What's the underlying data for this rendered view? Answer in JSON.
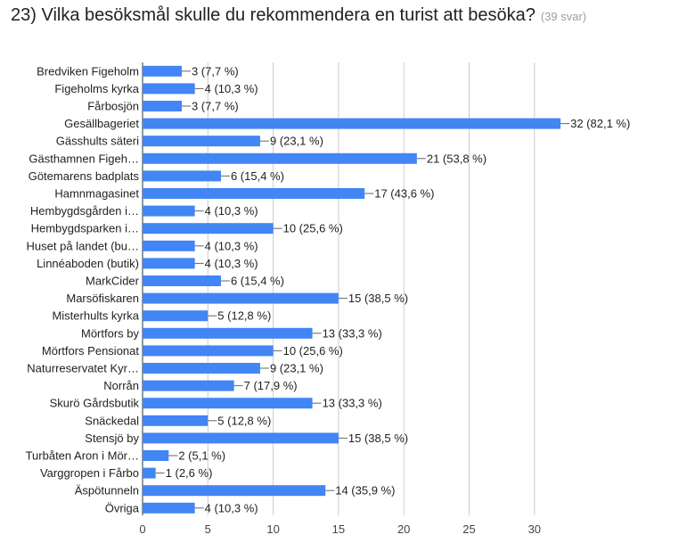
{
  "question": {
    "title": "23) Vilka besöksmål skulle du rekommendera en turist att besöka?",
    "response_count": "(39 svar)"
  },
  "colors": {
    "bar": "#4285f4",
    "grid": "#cccccc",
    "leader": "#666666"
  },
  "chart_data": {
    "type": "bar",
    "orientation": "horizontal",
    "categories": [
      "Bredviken Figeholm",
      "Figeholms kyrka",
      "Fårbosjön",
      "Gesällbageriet",
      "Gässhults säteri",
      "Gästhamnen Figeh…",
      "Götemarens badplats",
      "Hamnmagasinet",
      "Hembygdsgården i…",
      "Hembygdsparken i…",
      "Huset på landet (bu…",
      "Linnéaboden (butik)",
      "MarkCider",
      "Marsöfiskaren",
      "Misterhults kyrka",
      "Mörtfors by",
      "Mörtfors Pensionat",
      "Naturreservatet Kyr…",
      "Norrån",
      "Skurö Gårdsbutik",
      "Snäckedal",
      "Stensjö by",
      "Turbåten Aron i Mör…",
      "Varggropen i Fårbo",
      "Äspötunneln",
      "Övriga"
    ],
    "values": [
      3,
      4,
      3,
      32,
      9,
      21,
      6,
      17,
      4,
      10,
      4,
      4,
      6,
      15,
      5,
      13,
      10,
      9,
      7,
      13,
      5,
      15,
      2,
      1,
      14,
      4
    ],
    "value_labels": [
      "3 (7,7 %)",
      "4 (10,3 %)",
      "3 (7,7 %)",
      "32 (82,1 %)",
      "9 (23,1 %)",
      "21 (53,8 %)",
      "6 (15,4 %)",
      "17 (43,6 %)",
      "4 (10,3 %)",
      "10 (25,6 %)",
      "4 (10,3 %)",
      "4 (10,3 %)",
      "6 (15,4 %)",
      "15 (38,5 %)",
      "5 (12,8 %)",
      "13 (33,3 %)",
      "10 (25,6 %)",
      "9 (23,1 %)",
      "7 (17,9 %)",
      "13 (33,3 %)",
      "5 (12,8 %)",
      "15 (38,5 %)",
      "2 (5,1 %)",
      "1 (2,6 %)",
      "14 (35,9 %)",
      "4 (10,3 %)"
    ],
    "x_ticks": [
      "0",
      "5",
      "10",
      "15",
      "20",
      "25",
      "30"
    ],
    "xlim": [
      0,
      35
    ],
    "grid": true,
    "legend": "none"
  }
}
